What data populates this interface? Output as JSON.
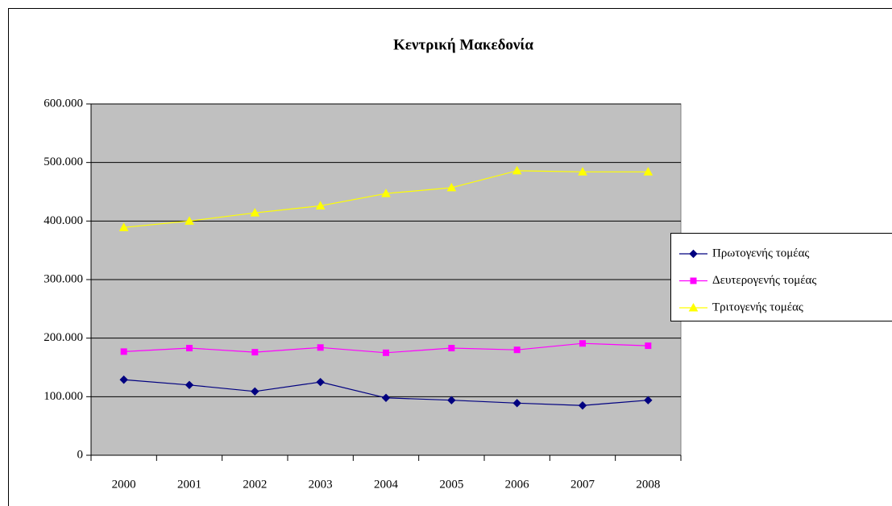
{
  "chart_data": {
    "type": "line",
    "title": "Κεντρική Μακεδονία",
    "categories": [
      "2000",
      "2001",
      "2002",
      "2003",
      "2004",
      "2005",
      "2006",
      "2007",
      "2008"
    ],
    "series": [
      {
        "name": "Πρωτογενής τομέας",
        "color": "#000080",
        "marker": "diamond",
        "values": [
          129000,
          120000,
          109000,
          125000,
          98000,
          94000,
          89000,
          85000,
          94000
        ]
      },
      {
        "name": "Δευτερογενής τομέας",
        "color": "#ff00ff",
        "marker": "square",
        "values": [
          177000,
          183000,
          176000,
          184000,
          175000,
          183000,
          180000,
          191000,
          187000
        ]
      },
      {
        "name": "Τριτογενής τομέας",
        "color": "#ffff00",
        "marker": "triangle",
        "values": [
          389000,
          400000,
          414000,
          426000,
          447000,
          457000,
          486000,
          484000,
          484000
        ]
      }
    ],
    "ylim": [
      0,
      600000
    ],
    "yticks": [
      0,
      {
        "value": 100000,
        "label": "100.000"
      },
      {
        "value": 200000,
        "label": "200.000"
      },
      {
        "value": 300000,
        "label": "300.000"
      },
      {
        "value": 400000,
        "label": "400.000"
      },
      {
        "value": 500000,
        "label": "500.000"
      },
      {
        "value": 600000,
        "label": "600.000"
      }
    ],
    "grid": true,
    "legend": "right",
    "plot_background": "#c0c0c0"
  }
}
